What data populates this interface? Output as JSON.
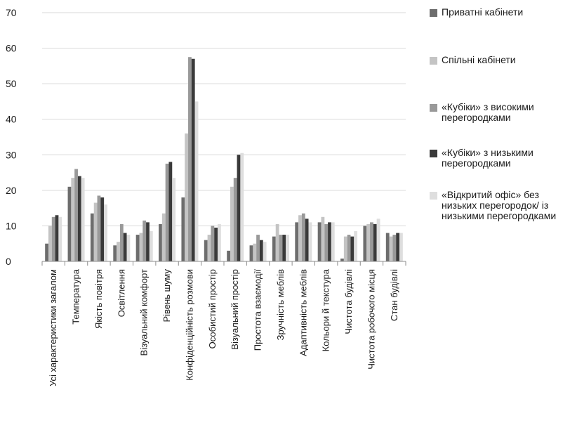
{
  "chart_data": {
    "type": "bar",
    "ylim": [
      0,
      70
    ],
    "yticks": [
      0,
      10,
      20,
      30,
      40,
      50,
      60,
      70
    ],
    "grid": true,
    "legend_position": "right",
    "categories": [
      "Усі характеристики загалом",
      "Температура",
      "Якість повітря",
      "Освітлення",
      "Візуальний комфорт",
      "Рівень шуму",
      "Конфіденційність розмови",
      "Особистий простір",
      "Візуальний простір",
      "Простота взаємодії",
      "Зручність меблів",
      "Адаптивність меблів",
      "Кольори й текстура",
      "Чистота будівлі",
      "Чистота робочого місця",
      "Стан будівлі"
    ],
    "series": [
      {
        "name": "Приватні кабінети",
        "color": "#6d6d6d",
        "values": [
          5,
          21,
          13.5,
          4.5,
          7.5,
          10.5,
          18,
          6,
          3,
          4.5,
          7,
          11,
          11,
          0.8,
          10,
          8
        ]
      },
      {
        "name": "Спільні кабінети",
        "color": "#c4c4c4",
        "values": [
          10,
          23.5,
          16.5,
          5.5,
          8,
          13.5,
          36,
          7.5,
          21,
          5,
          10.5,
          13,
          12.5,
          7,
          10.5,
          7
        ]
      },
      {
        "name": "«Кубіки» з високими перегородками",
        "color": "#999999",
        "values": [
          12.5,
          26,
          18.5,
          10.5,
          11.5,
          27.5,
          57.5,
          10,
          23.5,
          7.5,
          7.5,
          13.5,
          10.5,
          7.5,
          11,
          7.5
        ]
      },
      {
        "name": "«Кубіки» з низькими перегородками",
        "color": "#3a3a3a",
        "values": [
          13,
          24,
          18,
          8,
          11,
          28,
          57,
          9.5,
          30,
          6,
          7.5,
          12,
          11,
          7,
          10.5,
          8
        ]
      },
      {
        "name": "«Відкритий офіс» без низьких перегородок/ із низькими перегородками",
        "color": "#dedede",
        "values": [
          12.5,
          23.5,
          16,
          7.5,
          8.5,
          23.5,
          45,
          10.5,
          30.5,
          5.5,
          7.5,
          11,
          11,
          8.5,
          12,
          8
        ]
      }
    ]
  }
}
